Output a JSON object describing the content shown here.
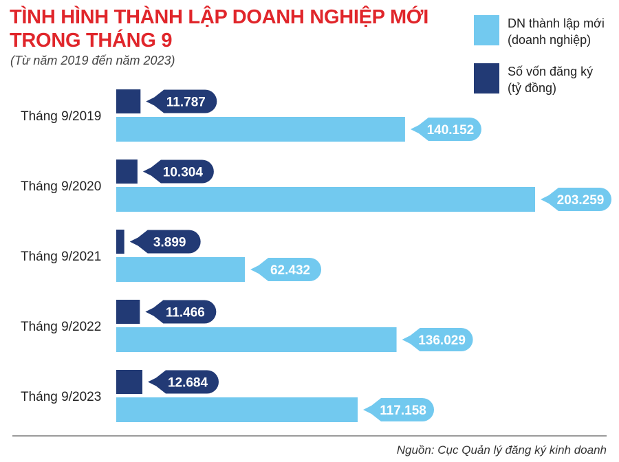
{
  "header": {
    "title_line1": "TÌNH HÌNH THÀNH LẬP DOANH NGHIỆP MỚI",
    "title_line2": "TRONG THÁNG 9",
    "subtitle": "(Từ năm 2019 đến năm 2023)"
  },
  "legend": {
    "series1_line1": "DN thành lập mới",
    "series1_line2": "(doanh nghiệp)",
    "series2_line1": "Số vốn đăng ký",
    "series2_line2": "(tỷ đồng)"
  },
  "colors": {
    "light": "#72c9ef",
    "dark": "#223a75",
    "title": "#e0262b"
  },
  "source": "Nguồn: Cục Quản lý đăng ký kinh doanh",
  "chart_data": {
    "type": "bar",
    "orientation": "horizontal",
    "categories": [
      "Tháng 9/2019",
      "Tháng 9/2020",
      "Tháng 9/2021",
      "Tháng 9/2022",
      "Tháng 9/2023"
    ],
    "series": [
      {
        "name": "DN thành lập mới (doanh nghiệp)",
        "values": [
          11787,
          10304,
          3899,
          11466,
          12684
        ],
        "labels": [
          "11.787",
          "10.304",
          "3.899",
          "11.466",
          "12.684"
        ],
        "color": "#223a75"
      },
      {
        "name": "Số vốn đăng ký (tỷ đồng)",
        "values": [
          140152,
          203259,
          62432,
          136029,
          117158
        ],
        "labels": [
          "140.152",
          "203.259",
          "62.432",
          "136.029",
          "117.158"
        ],
        "color": "#72c9ef"
      }
    ]
  }
}
